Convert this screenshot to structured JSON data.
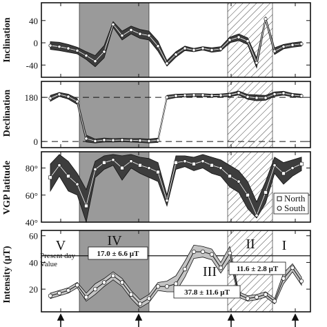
{
  "colors": {
    "envelope": "#3d3d3d",
    "envelope_light": "#c4c4c4",
    "shade": "#9a9a9a",
    "line": "#111111",
    "marker_fill": "#ffffff"
  },
  "chart_data": [
    {
      "type": "line",
      "ylabel": "Inclination",
      "yticks": [
        "40",
        "0",
        "-40"
      ],
      "ylim": [
        -62,
        72
      ],
      "x": [
        1,
        2,
        3,
        4,
        5,
        6,
        7,
        8,
        9,
        10,
        11,
        12,
        13,
        14,
        15,
        16,
        17,
        18,
        19,
        20,
        21,
        22,
        23,
        24,
        25,
        26,
        27,
        28,
        29
      ],
      "series": [
        {
          "values": [
            -5,
            -7,
            -10,
            -14,
            -23,
            -33,
            -16,
            33,
            13,
            23,
            16,
            13,
            -6,
            -37,
            -21,
            -10,
            -13,
            -10,
            -13,
            -11,
            5,
            10,
            3,
            -36,
            43,
            -15,
            -7,
            -4,
            -2
          ],
          "upper": [
            2,
            1,
            -3,
            -8,
            -16,
            -23,
            -5,
            38,
            21,
            30,
            24,
            21,
            3,
            -32,
            -16,
            -6,
            -10,
            -7,
            -9,
            -7,
            10,
            16,
            9,
            -27,
            47,
            -9,
            -3,
            0,
            2
          ],
          "lower": [
            -12,
            -14,
            -17,
            -20,
            -30,
            -43,
            -27,
            28,
            5,
            16,
            8,
            5,
            -15,
            -42,
            -26,
            -14,
            -16,
            -13,
            -17,
            -15,
            0,
            4,
            -3,
            -45,
            39,
            -21,
            -11,
            -8,
            -6
          ]
        }
      ]
    },
    {
      "type": "line",
      "ylabel": "Declination",
      "yticks": [
        "180",
        "0"
      ],
      "ylim": [
        -25,
        245
      ],
      "dashed_lines": [
        180,
        0
      ],
      "x": [
        1,
        2,
        3,
        4,
        5,
        6,
        7,
        8,
        9,
        10,
        11,
        12,
        13,
        14,
        15,
        16,
        17,
        18,
        19,
        20,
        21,
        22,
        23,
        24,
        25,
        26,
        27,
        28,
        29
      ],
      "series": [
        {
          "values": [
            176,
            192,
            183,
            163,
            12,
            2,
            6,
            5,
            6,
            5,
            4,
            2,
            5,
            180,
            186,
            188,
            189,
            189,
            187,
            188,
            190,
            198,
            182,
            178,
            178,
            193,
            197,
            189,
            186
          ],
          "upper": [
            188,
            200,
            193,
            175,
            26,
            10,
            14,
            12,
            13,
            12,
            12,
            10,
            14,
            188,
            193,
            194,
            195,
            195,
            193,
            194,
            197,
            206,
            192,
            190,
            188,
            202,
            205,
            196,
            193
          ],
          "lower": [
            164,
            184,
            173,
            151,
            -2,
            -6,
            -2,
            -2,
            -1,
            -2,
            -4,
            -6,
            -4,
            172,
            179,
            182,
            183,
            183,
            181,
            182,
            183,
            190,
            172,
            166,
            168,
            184,
            189,
            182,
            179
          ]
        }
      ]
    },
    {
      "type": "line",
      "ylabel": "VGP latitude",
      "yticks": [
        "80°",
        "60°",
        "40°"
      ],
      "ylim": [
        40,
        92
      ],
      "legend": {
        "position": "bottom-right",
        "entries": [
          "North",
          "South"
        ]
      },
      "x": [
        1,
        2,
        3,
        4,
        5,
        6,
        7,
        8,
        9,
        10,
        11,
        12,
        13,
        14,
        15,
        16,
        17,
        18,
        19,
        20,
        21,
        22,
        23,
        24,
        25,
        26,
        27,
        28,
        29
      ],
      "series": [
        {
          "values": [
            73,
            82,
            74,
            68,
            52,
            79,
            84,
            86,
            80,
            85,
            82,
            80,
            77,
            56,
            84,
            85,
            83,
            85,
            82,
            80,
            74,
            70,
            60,
            45,
            62,
            82,
            76,
            80,
            83
          ],
          "upper": [
            83,
            90,
            85,
            76,
            64,
            85,
            89,
            90,
            89,
            90,
            88,
            87,
            84,
            60,
            89,
            89,
            88,
            90,
            88,
            86,
            82,
            78,
            70,
            55,
            70,
            88,
            84,
            86,
            88
          ],
          "lower": [
            63,
            74,
            63,
            60,
            40,
            73,
            79,
            82,
            71,
            80,
            76,
            73,
            70,
            52,
            79,
            81,
            78,
            80,
            76,
            74,
            66,
            62,
            50,
            43,
            54,
            76,
            68,
            74,
            78
          ]
        }
      ]
    },
    {
      "type": "line",
      "ylabel": "Intensity (µT)",
      "yticks": [
        "60",
        "40",
        "20"
      ],
      "ylim": [
        3,
        64
      ],
      "present_day": 45,
      "present_day_label": [
        "Present day",
        "Value"
      ],
      "period_labels": [
        "V",
        "IV",
        "III",
        "II",
        "I"
      ],
      "period_means": [
        "17.0 ± 6.6 µT",
        "37.8 ± 11.6 µT",
        "11.6 ± 2.8 µT"
      ],
      "x": [
        1,
        2,
        3,
        4,
        5,
        6,
        7,
        8,
        9,
        10,
        11,
        12,
        13,
        14,
        15,
        16,
        17,
        18,
        19,
        20,
        21,
        22,
        23,
        24,
        25,
        26,
        27,
        28,
        29
      ],
      "series": [
        {
          "values": [
            15,
            17,
            19,
            23,
            14,
            20,
            25,
            30,
            25,
            16,
            9,
            13,
            22,
            22,
            24,
            35,
            48,
            48,
            46,
            36,
            47,
            16,
            13,
            14,
            16,
            11,
            28,
            36,
            26
          ],
          "upper": [
            17,
            19,
            21,
            25,
            17,
            24,
            28,
            33,
            28,
            19,
            12,
            16,
            25,
            26,
            30,
            41,
            53,
            52,
            50,
            40,
            52,
            18,
            15,
            16,
            18,
            13,
            32,
            39,
            29
          ],
          "lower": [
            13,
            15,
            17,
            21,
            11,
            16,
            22,
            27,
            22,
            13,
            6,
            10,
            19,
            18,
            18,
            29,
            43,
            44,
            42,
            32,
            42,
            14,
            11,
            12,
            14,
            9,
            24,
            33,
            23
          ]
        }
      ]
    }
  ]
}
